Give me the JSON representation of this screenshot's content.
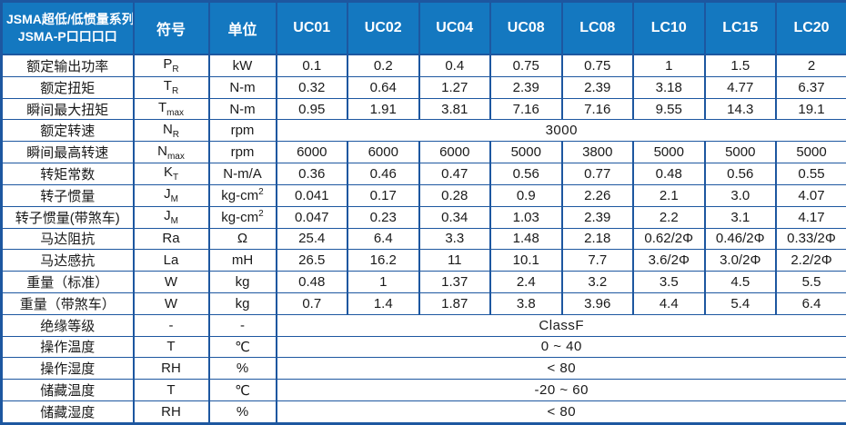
{
  "table": {
    "title_line1": "JSMA超低/低惯量系列",
    "title_line2": "JSMA-P口口口口",
    "symbol_col_label": "符号",
    "unit_col_label": "单位",
    "models": [
      "UC01",
      "UC02",
      "UC04",
      "UC08",
      "LC08",
      "LC10",
      "LC15",
      "LC20"
    ],
    "rows": [
      {
        "label": "额定输出功率",
        "symbol": {
          "base": "P",
          "sub": "R"
        },
        "unit": {
          "base": "kW",
          "sup": ""
        },
        "values": [
          "0.1",
          "0.2",
          "0.4",
          "0.75",
          "0.75",
          "1",
          "1.5",
          "2"
        ]
      },
      {
        "label": "额定扭矩",
        "symbol": {
          "base": "T",
          "sub": "R"
        },
        "unit": {
          "base": "N-m",
          "sup": ""
        },
        "values": [
          "0.32",
          "0.64",
          "1.27",
          "2.39",
          "2.39",
          "3.18",
          "4.77",
          "6.37"
        ]
      },
      {
        "label": "瞬间最大扭矩",
        "symbol": {
          "base": "T",
          "sub": "max"
        },
        "unit": {
          "base": "N-m",
          "sup": ""
        },
        "values": [
          "0.95",
          "1.91",
          "3.81",
          "7.16",
          "7.16",
          "9.55",
          "14.3",
          "19.1"
        ]
      },
      {
        "label": "额定转速",
        "symbol": {
          "base": "N",
          "sub": "R"
        },
        "unit": {
          "base": "rpm",
          "sup": ""
        },
        "span_value": "3000"
      },
      {
        "label": "瞬间最高转速",
        "symbol": {
          "base": "N",
          "sub": "max"
        },
        "unit": {
          "base": "rpm",
          "sup": ""
        },
        "values": [
          "6000",
          "6000",
          "6000",
          "5000",
          "3800",
          "5000",
          "5000",
          "5000"
        ]
      },
      {
        "label": "转矩常数",
        "symbol": {
          "base": "K",
          "sub": "T"
        },
        "unit": {
          "base": "N-m/A",
          "sup": ""
        },
        "values": [
          "0.36",
          "0.46",
          "0.47",
          "0.56",
          "0.77",
          "0.48",
          "0.56",
          "0.55"
        ]
      },
      {
        "label": "转子惯量",
        "symbol": {
          "base": "J",
          "sub": "M"
        },
        "unit": {
          "base": "kg-cm",
          "sup": "2"
        },
        "values": [
          "0.041",
          "0.17",
          "0.28",
          "0.9",
          "2.26",
          "2.1",
          "3.0",
          "4.07"
        ]
      },
      {
        "label": "转子惯量(带煞车)",
        "symbol": {
          "base": "J",
          "sub": "M"
        },
        "unit": {
          "base": "kg-cm",
          "sup": "2"
        },
        "values": [
          "0.047",
          "0.23",
          "0.34",
          "1.03",
          "2.39",
          "2.2",
          "3.1",
          "4.17"
        ]
      },
      {
        "label": "马达阻抗",
        "symbol": {
          "base": "Ra",
          "sub": ""
        },
        "unit": {
          "base": "Ω",
          "sup": ""
        },
        "values": [
          "25.4",
          "6.4",
          "3.3",
          "1.48",
          "2.18",
          "0.62/2Φ",
          "0.46/2Φ",
          "0.33/2Φ"
        ]
      },
      {
        "label": "马达感抗",
        "symbol": {
          "base": "La",
          "sub": ""
        },
        "unit": {
          "base": "mH",
          "sup": ""
        },
        "values": [
          "26.5",
          "16.2",
          "11",
          "10.1",
          "7.7",
          "3.6/2Φ",
          "3.0/2Φ",
          "2.2/2Φ"
        ]
      },
      {
        "label": "重量（标准）",
        "symbol": {
          "base": "W",
          "sub": ""
        },
        "unit": {
          "base": "kg",
          "sup": ""
        },
        "values": [
          "0.48",
          "1",
          "1.37",
          "2.4",
          "3.2",
          "3.5",
          "4.5",
          "5.5"
        ]
      },
      {
        "label": "重量（带煞车）",
        "symbol": {
          "base": "W",
          "sub": ""
        },
        "unit": {
          "base": "kg",
          "sup": ""
        },
        "values": [
          "0.7",
          "1.4",
          "1.87",
          "3.8",
          "3.96",
          "4.4",
          "5.4",
          "6.4"
        ]
      },
      {
        "label": "绝缘等级",
        "symbol": {
          "base": "-",
          "sub": ""
        },
        "unit": {
          "base": "-",
          "sup": ""
        },
        "span_value": "ClassF"
      },
      {
        "label": "操作温度",
        "symbol": {
          "base": "T",
          "sub": ""
        },
        "unit": {
          "base": "℃",
          "sup": ""
        },
        "span_value": "0 ~ 40"
      },
      {
        "label": "操作湿度",
        "symbol": {
          "base": "RH",
          "sub": ""
        },
        "unit": {
          "base": "%",
          "sup": ""
        },
        "span_value": "< 80"
      },
      {
        "label": "储藏温度",
        "symbol": {
          "base": "T",
          "sub": ""
        },
        "unit": {
          "base": "℃",
          "sup": ""
        },
        "span_value": "-20 ~ 60"
      },
      {
        "label": "储藏湿度",
        "symbol": {
          "base": "RH",
          "sub": ""
        },
        "unit": {
          "base": "%",
          "sup": ""
        },
        "span_value": "< 80"
      }
    ]
  }
}
